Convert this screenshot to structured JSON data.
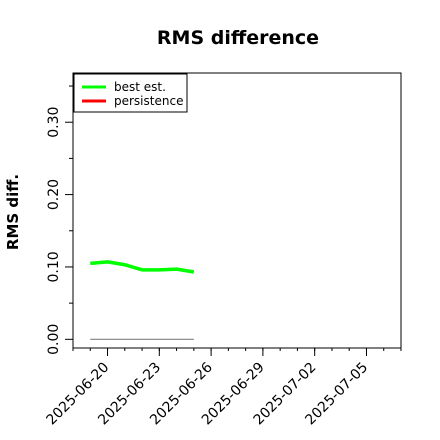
{
  "chart_data": {
    "type": "line",
    "title": "RMS difference",
    "ylabel": "RMS diff.",
    "xlabel": "",
    "x_ticks": [
      "2025-06-20",
      "2025-06-23",
      "2025-06-26",
      "2025-06-29",
      "2025-07-02",
      "2025-07-05"
    ],
    "y_ticks": [
      "0.00",
      "0.10",
      "0.20",
      "0.30"
    ],
    "xlim": [
      "2025-06-18",
      "2025-07-07"
    ],
    "ylim": [
      -0.012,
      0.368
    ],
    "grid": false,
    "legend_position": "top-left",
    "legend": [
      "best est.",
      "persistence"
    ],
    "series": [
      {
        "name": "best est.",
        "color": "#00ff00",
        "points": [
          {
            "x": "2025-06-19",
            "y": 0.105
          },
          {
            "x": "2025-06-20",
            "y": 0.107
          },
          {
            "x": "2025-06-21",
            "y": 0.103
          },
          {
            "x": "2025-06-22",
            "y": 0.096
          },
          {
            "x": "2025-06-23",
            "y": 0.096
          },
          {
            "x": "2025-06-24",
            "y": 0.097
          },
          {
            "x": "2025-06-25",
            "y": 0.093
          }
        ]
      },
      {
        "name": "persistence",
        "color": "#ff0000",
        "points": []
      }
    ],
    "reference_line": {
      "y": 0.0,
      "x_from": "2025-06-19",
      "x_to": "2025-06-25",
      "color": "#808080"
    }
  }
}
